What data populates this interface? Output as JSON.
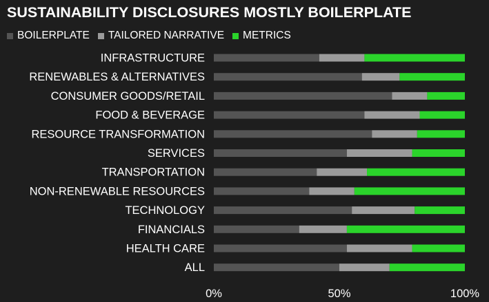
{
  "chart_data": {
    "type": "bar",
    "stacked": true,
    "orientation": "horizontal",
    "title": "SUSTAINABILITY DISCLOSURES MOSTLY BOILERPLATE",
    "categories": [
      "INFRASTRUCTURE",
      "RENEWABLES & ALTERNATIVES",
      "CONSUMER GOODS/RETAIL",
      "FOOD & BEVERAGE",
      "RESOURCE TRANSFORMATION",
      "SERVICES",
      "TRANSPORTATION",
      "NON-RENEWABLE RESOURCES",
      "TECHNOLOGY",
      "FINANCIALS",
      "HEALTH CARE",
      "ALL"
    ],
    "series": [
      {
        "name": "BOILERPLATE",
        "color": "#545454",
        "values": [
          42,
          59,
          71,
          60,
          63,
          53,
          41,
          38,
          55,
          34,
          53,
          50
        ]
      },
      {
        "name": "TAILORED NARRATIVE",
        "color": "#9b9b9b",
        "values": [
          18,
          15,
          14,
          22,
          18,
          26,
          20,
          18,
          25,
          19,
          26,
          20
        ]
      },
      {
        "name": "METRICS",
        "color": "#2bd42b",
        "values": [
          40,
          26,
          15,
          18,
          19,
          21,
          39,
          44,
          20,
          47,
          21,
          30
        ]
      }
    ],
    "xlim": [
      0,
      100
    ],
    "xticks": [
      "0%",
      "50%",
      "100%"
    ],
    "grid": false,
    "legend_position": "top-left"
  }
}
